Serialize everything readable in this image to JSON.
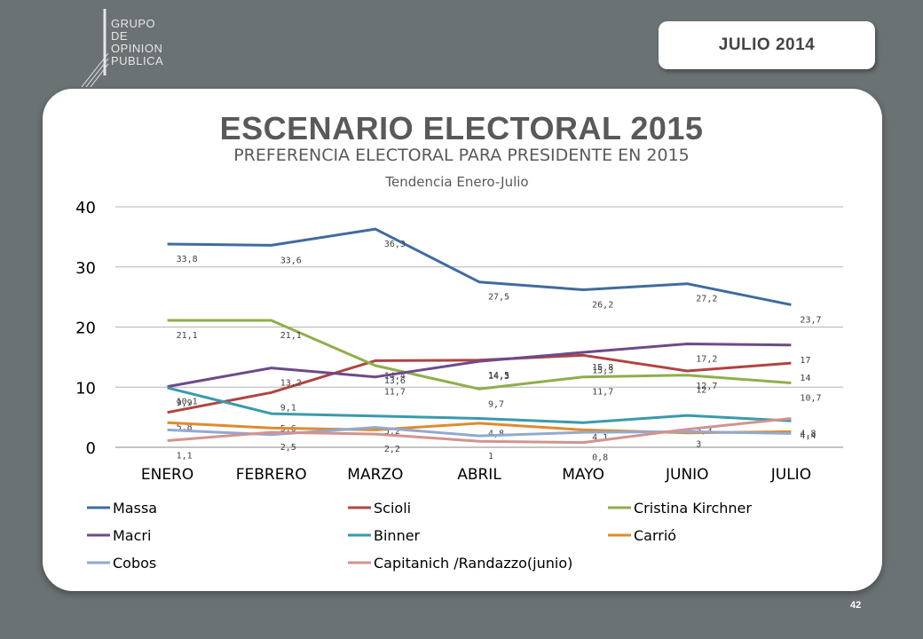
{
  "header": {
    "logo_lines": [
      "GRUPO",
      "DE",
      "OPINION",
      "PUBLICA"
    ],
    "date_label": "JULIO  2014"
  },
  "page_number": "42",
  "colors": {
    "background": "#6b7274",
    "panel": "#ffffff"
  },
  "chart_data": {
    "type": "line",
    "title": "ESCENARIO ELECTORAL 2015",
    "subtitle": "PREFERENCIA ELECTORAL PARA PRESIDENTE EN 2015",
    "subtitle2": "Tendencia Enero-Julio",
    "categories": [
      "ENERO",
      "FEBRERO",
      "MARZO",
      "ABRIL",
      "MAYO",
      "JUNIO",
      "JULIO"
    ],
    "ylim": [
      0,
      40
    ],
    "yticks": [
      0,
      10,
      20,
      30,
      40
    ],
    "grid": true,
    "legend_position": "bottom",
    "series": [
      {
        "name": "Massa",
        "color": "#3f6ba0",
        "values": [
          33.8,
          33.6,
          36.3,
          27.5,
          26.2,
          27.2,
          23.7
        ],
        "labels": [
          "33,8",
          "33,6",
          "36,3",
          "27,5",
          "26,2",
          "27,2",
          "23,7"
        ]
      },
      {
        "name": "Scioli",
        "color": "#b04441",
        "values": [
          5.8,
          9.1,
          14.4,
          14.5,
          15.3,
          12.7,
          14
        ],
        "labels": [
          "5,8",
          "9,1",
          "14,4",
          "14,5",
          "15,3",
          "12,7",
          "14"
        ]
      },
      {
        "name": "Cristina Kirchner",
        "color": "#8fae4b",
        "values": [
          21.1,
          21.1,
          13.6,
          9.7,
          11.7,
          12,
          10.7
        ],
        "labels": [
          "21,1",
          "21,1",
          "13,6",
          "9,7",
          "11,7",
          "12",
          "10,7"
        ]
      },
      {
        "name": "Macri",
        "color": "#6d4a8a",
        "values": [
          10.1,
          13.2,
          11.7,
          14.3,
          15.8,
          17.2,
          17
        ],
        "labels": [
          "10,1",
          "13,2",
          "11,7",
          "14,3",
          "15,8",
          "17,2",
          "17"
        ]
      },
      {
        "name": "Binner",
        "color": "#3a9aab",
        "values": [
          9.9,
          5.6,
          5.2,
          4.8,
          4.1,
          5.3,
          4.4
        ],
        "labels": [
          "9,9",
          "5,6",
          "5,2",
          "4,8",
          "4,1",
          "5,3",
          "4,4"
        ]
      },
      {
        "name": "Carrió",
        "color": "#e08a2e",
        "values": [
          4.1,
          3.2,
          2.9,
          4,
          2.9,
          2.4,
          2.6
        ],
        "labels": [
          "",
          "",
          "",
          "",
          "",
          "",
          ""
        ]
      },
      {
        "name": "Cobos",
        "color": "#91a9d2",
        "values": [
          2.9,
          2.1,
          3.3,
          1.9,
          2.5,
          2.6,
          2.3
        ],
        "labels": [
          "",
          "",
          "",
          "",
          "",
          "",
          ""
        ]
      },
      {
        "name": "Capitanich /Randazzo(junio)",
        "color": "#d4928f",
        "values": [
          1.1,
          2.5,
          2.2,
          1,
          0.8,
          3,
          4.8
        ],
        "labels": [
          "1,1",
          "2,5",
          "2,2",
          "1",
          "0,8",
          "3",
          "4,8"
        ]
      }
    ]
  }
}
